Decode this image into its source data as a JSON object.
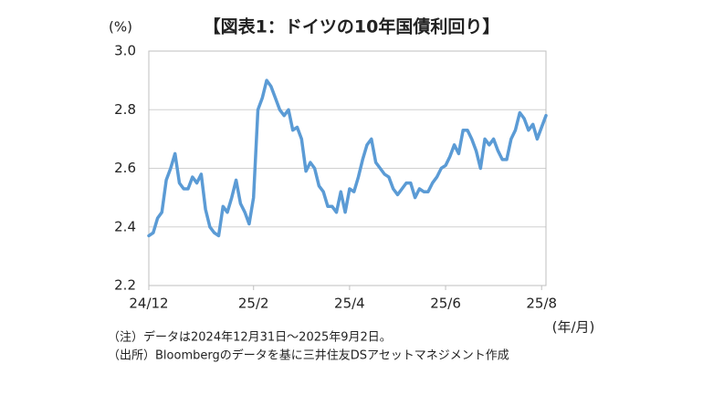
{
  "chart_data": {
    "type": "line",
    "title": "【図表1：ドイツの10年国債利回り】",
    "y_label": "(%)",
    "x_label": "(年/月)",
    "notes": [
      "（注）データは2024年12月31日～2025年9月2日。",
      "（出所）Bloombergのデータを基に三井住友DSアセットマネジメント作成"
    ],
    "categories": [
      "24/12",
      null,
      null,
      null,
      null,
      null,
      null,
      null,
      null,
      null,
      null,
      null,
      null,
      null,
      null,
      null,
      null,
      null,
      null,
      null,
      null,
      null,
      null,
      null,
      "25/2",
      null,
      null,
      null,
      null,
      null,
      null,
      null,
      null,
      null,
      null,
      null,
      null,
      null,
      null,
      null,
      null,
      null,
      null,
      null,
      null,
      null,
      "25/4",
      null,
      null,
      null,
      null,
      null,
      null,
      null,
      null,
      null,
      null,
      null,
      null,
      null,
      null,
      null,
      null,
      null,
      null,
      null,
      null,
      null,
      "25/6",
      null,
      null,
      null,
      null,
      null,
      null,
      null,
      null,
      null,
      null,
      null,
      null,
      null,
      null,
      null,
      null,
      null,
      null,
      null,
      null,
      null,
      "25/8",
      null
    ],
    "series": [
      {
        "name": "ドイツ10年国債利回り",
        "color": "#5b9bd5",
        "values": [
          2.37,
          2.38,
          2.43,
          2.45,
          2.56,
          2.6,
          2.65,
          2.55,
          2.53,
          2.53,
          2.57,
          2.55,
          2.58,
          2.46,
          2.4,
          2.38,
          2.37,
          2.47,
          2.45,
          2.5,
          2.56,
          2.48,
          2.45,
          2.41,
          2.5,
          2.8,
          2.84,
          2.9,
          2.88,
          2.84,
          2.8,
          2.78,
          2.8,
          2.73,
          2.74,
          2.7,
          2.59,
          2.62,
          2.6,
          2.54,
          2.52,
          2.47,
          2.47,
          2.45,
          2.52,
          2.45,
          2.53,
          2.52,
          2.57,
          2.63,
          2.68,
          2.7,
          2.62,
          2.6,
          2.58,
          2.57,
          2.53,
          2.51,
          2.53,
          2.55,
          2.55,
          2.5,
          2.53,
          2.52,
          2.52,
          2.55,
          2.57,
          2.6,
          2.61,
          2.64,
          2.68,
          2.65,
          2.73,
          2.73,
          2.7,
          2.66,
          2.6,
          2.7,
          2.68,
          2.7,
          2.66,
          2.63,
          2.63,
          2.7,
          2.73,
          2.79,
          2.77,
          2.73,
          2.75,
          2.7,
          2.74,
          2.78
        ]
      }
    ],
    "ylim": [
      2.2,
      3.0
    ],
    "yticks": [
      2.2,
      2.4,
      2.6,
      2.8,
      {
        "value": 3.0,
        "label": "3.0"
      }
    ],
    "grid": true
  }
}
